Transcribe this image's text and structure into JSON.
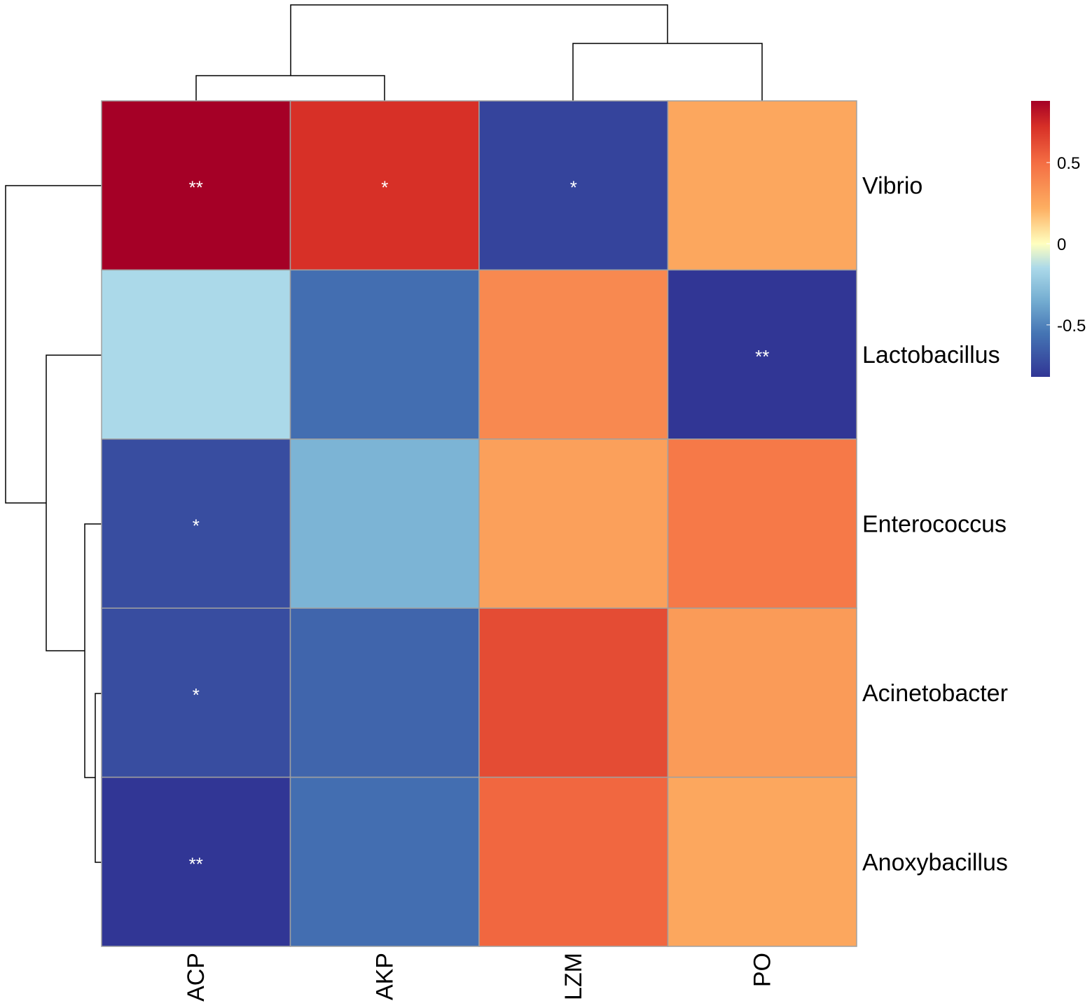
{
  "chart_data": {
    "type": "heatmap",
    "title": "",
    "rows": [
      "Vibrio",
      "Lactobacillus",
      "Enterococcus",
      "Acinetobacter",
      "Anoxybacillus"
    ],
    "columns": [
      "ACP",
      "AKP",
      "LZM",
      "PO"
    ],
    "values": [
      [
        0.88,
        0.72,
        -0.76,
        0.25
      ],
      [
        -0.15,
        -0.58,
        0.38,
        -0.82
      ],
      [
        -0.72,
        -0.32,
        0.28,
        0.45
      ],
      [
        -0.72,
        -0.62,
        0.62,
        0.3
      ],
      [
        -0.82,
        -0.58,
        0.52,
        0.25
      ]
    ],
    "significance": [
      [
        "**",
        "*",
        "*",
        ""
      ],
      [
        "",
        "",
        "",
        "**"
      ],
      [
        "*",
        "",
        "",
        ""
      ],
      [
        "*",
        "",
        "",
        ""
      ],
      [
        "**",
        "",
        "",
        ""
      ]
    ],
    "color_scale": {
      "range": [
        -0.82,
        0.88
      ],
      "stops": [
        {
          "value": -0.82,
          "color": "#313695"
        },
        {
          "value": -0.55,
          "color": "#4575b4"
        },
        {
          "value": -0.35,
          "color": "#74add1"
        },
        {
          "value": -0.15,
          "color": "#abd9e9"
        },
        {
          "value": 0.0,
          "color": "#ffffbf"
        },
        {
          "value": 0.22,
          "color": "#fdae61"
        },
        {
          "value": 0.5,
          "color": "#f46d43"
        },
        {
          "value": 0.72,
          "color": "#d73027"
        },
        {
          "value": 0.88,
          "color": "#a50026"
        }
      ],
      "ticks": [
        0.5,
        0,
        -0.5
      ],
      "tick_labels": [
        "0.5",
        "0",
        "-0.5"
      ]
    },
    "col_dendrogram": "((ACP,AKP),(LZM,PO))",
    "row_dendrogram": "(Vibrio,(Lactobacillus,(Enterococcus,(Acinetobacter,Anoxybacillus))))"
  }
}
